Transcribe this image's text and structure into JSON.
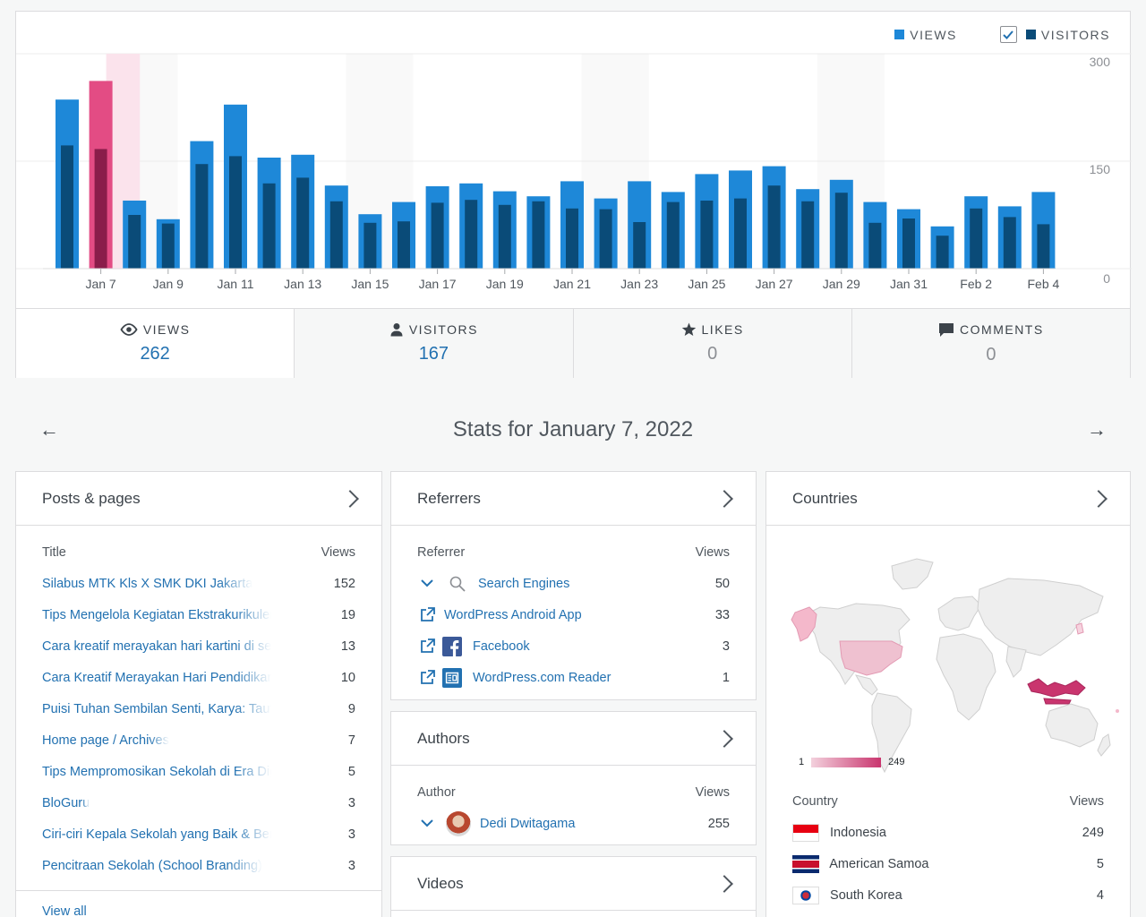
{
  "legend": {
    "views_label": "VIEWS",
    "visitors_label": "VISITORS"
  },
  "colors": {
    "views": "#1e88d8",
    "visitors": "#0a4b78",
    "views_selected": "#e34c84",
    "visitors_selected": "#8a1d4a",
    "link": "#2271b1"
  },
  "chart_data": {
    "type": "bar",
    "title": "",
    "xlabel": "",
    "ylabel": "",
    "ylim": [
      0,
      300
    ],
    "yticks": [
      "0",
      "150",
      "300"
    ],
    "categories": [
      "Jan 6",
      "Jan 7",
      "Jan 8",
      "Jan 9",
      "Jan 10",
      "Jan 11",
      "Jan 12",
      "Jan 13",
      "Jan 14",
      "Jan 15",
      "Jan 16",
      "Jan 17",
      "Jan 18",
      "Jan 19",
      "Jan 20",
      "Jan 21",
      "Jan 22",
      "Jan 23",
      "Jan 24",
      "Jan 25",
      "Jan 26",
      "Jan 27",
      "Jan 28",
      "Jan 29",
      "Jan 30",
      "Jan 31",
      "Feb 1",
      "Feb 2",
      "Feb 3",
      "Feb 4"
    ],
    "xtick_labels": [
      "Jan 7",
      "Jan 9",
      "Jan 11",
      "Jan 13",
      "Jan 15",
      "Jan 17",
      "Jan 19",
      "Jan 21",
      "Jan 23",
      "Jan 25",
      "Jan 27",
      "Jan 29",
      "Jan 31",
      "Feb 2",
      "Feb 4"
    ],
    "selected": "Jan 7",
    "series": [
      {
        "name": "VIEWS",
        "values": [
          236,
          262,
          95,
          69,
          178,
          229,
          155,
          159,
          116,
          76,
          93,
          115,
          119,
          108,
          101,
          122,
          98,
          122,
          107,
          132,
          137,
          143,
          111,
          124,
          93,
          83,
          59,
          101,
          87,
          107
        ]
      },
      {
        "name": "VISITORS",
        "values": [
          172,
          167,
          75,
          63,
          146,
          157,
          119,
          127,
          94,
          64,
          66,
          92,
          96,
          89,
          94,
          84,
          83,
          65,
          93,
          95,
          98,
          116,
          94,
          106,
          64,
          70,
          46,
          84,
          72,
          62
        ]
      }
    ]
  },
  "summary": {
    "views": {
      "label": "VIEWS",
      "value": "262"
    },
    "visitors": {
      "label": "VISITORS",
      "value": "167"
    },
    "likes": {
      "label": "LIKES",
      "value": "0"
    },
    "comments": {
      "label": "COMMENTS",
      "value": "0"
    }
  },
  "date_title": "Stats for January 7, 2022",
  "posts": {
    "title": "Posts & pages",
    "col_title": "Title",
    "col_views": "Views",
    "rows": [
      {
        "title": "Silabus MTK Kls X SMK DKI Jakarta",
        "views": "152"
      },
      {
        "title": "Tips Mengelola Kegiatan Ekstrakurikuler",
        "views": "19"
      },
      {
        "title": "Cara kreatif merayakan hari kartini di sekolah",
        "views": "13"
      },
      {
        "title": "Cara Kreatif Merayakan Hari Pendidikan Nasional",
        "views": "10"
      },
      {
        "title": "Puisi Tuhan Sembilan Senti, Karya: Taufiq Ismail",
        "views": "9"
      },
      {
        "title": "Home page / Archives",
        "views": "7"
      },
      {
        "title": "Tips Mempromosikan Sekolah di Era Digital",
        "views": "5"
      },
      {
        "title": "BloGuru",
        "views": "3"
      },
      {
        "title": "Ciri-ciri Kepala Sekolah yang Baik & Benar",
        "views": "3"
      },
      {
        "title": "Pencitraan Sekolah (School Branding)",
        "views": "3"
      }
    ],
    "view_all": "View all"
  },
  "referrers": {
    "title": "Referrers",
    "col_title": "Referrer",
    "col_views": "Views",
    "rows": [
      {
        "name": "Search Engines",
        "views": "50",
        "icon": "search-icon"
      },
      {
        "name": "WordPress Android App",
        "views": "33",
        "icon": "external-link-icon"
      },
      {
        "name": "Facebook",
        "views": "3",
        "icon": "facebook-icon"
      },
      {
        "name": "WordPress.com Reader",
        "views": "1",
        "icon": "reader-icon"
      }
    ]
  },
  "authors": {
    "title": "Authors",
    "col_title": "Author",
    "col_views": "Views",
    "rows": [
      {
        "name": "Dedi Dwitagama",
        "views": "255"
      }
    ]
  },
  "videos": {
    "title": "Videos"
  },
  "countries": {
    "title": "Countries",
    "scale_min": "1",
    "scale_max": "249",
    "col_title": "Country",
    "col_views": "Views",
    "rows": [
      {
        "name": "Indonesia",
        "views": "249"
      },
      {
        "name": "American Samoa",
        "views": "5"
      },
      {
        "name": "South Korea",
        "views": "4"
      }
    ]
  }
}
